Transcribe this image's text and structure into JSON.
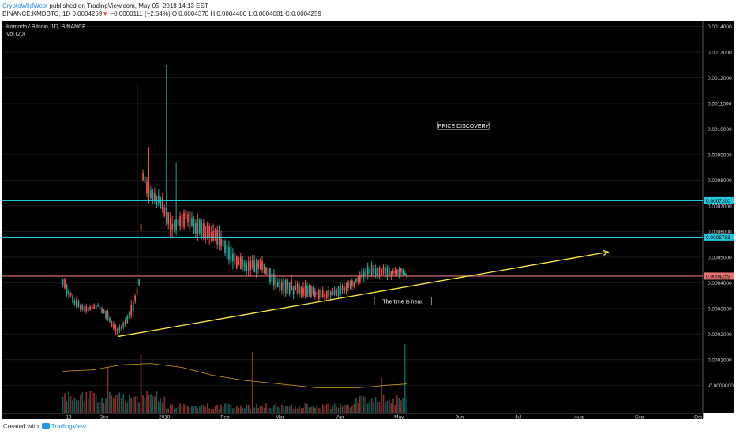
{
  "header": {
    "author": "CryptoWildWest",
    "published": " published on TradingView.com, May 05, 2018 14:13 EST",
    "symbol_line": "BINANCE:KMDBTC, 1D  0.0004259",
    "change_arrow": "▼",
    "change_text": " −0.0000111 (−2.54%)  O:0.0004370  H:0.0004480  L:0.0004081  C:0.0004259"
  },
  "footer": {
    "created": "Created with",
    "brand": "TradingView"
  },
  "chart_data": {
    "type": "candlestick",
    "title": "Komodo / Bitcoin, 1D, BINANCE",
    "volume_label": "Vol (20)",
    "y_ticks": [
      "0.0014000",
      "0.0013000",
      "0.0012000",
      "0.0011000",
      "0.0010000",
      "0.0009000",
      "0.0008000",
      "0.0007000",
      "0.0006000",
      "0.0005000",
      "0.0004000",
      "0.0003000",
      "0.0002000",
      "0.0001000",
      "-0.0000000"
    ],
    "ylim": [
      -0.00011,
      0.00142
    ],
    "x_ticks": [
      "13",
      "Dec",
      "2018",
      "Feb",
      "Mar",
      "Apr",
      "May",
      "Jun",
      "Jul",
      "Aug",
      "Sep",
      "Oct"
    ],
    "price_levels": [
      {
        "value": 0.00072,
        "label": "0.0007200",
        "color": "#26c6da"
      },
      {
        "value": 0.0005783,
        "label": "0.0005783",
        "color": "#26c6da"
      },
      {
        "value": 0.0004259,
        "label": "0.0004259",
        "color": "#e57373"
      }
    ],
    "trendline": {
      "start": [
        "2017-12-08",
        0.00019
      ],
      "end": [
        "2018-08-16",
        0.00052
      ],
      "color": "#ffeb3b"
    },
    "annotations": [
      {
        "text": "PRICE DISCOVERY",
        "x": "2018-06-03",
        "y": 0.00101
      },
      {
        "text": "The time is near.",
        "x": "2018-05-03",
        "y": 0.000325
      }
    ],
    "price_anchors": [
      [
        "2017-11-10",
        0.00038,
        0.00043
      ],
      [
        "2017-11-16",
        0.00031,
        0.00034
      ],
      [
        "2017-11-22",
        0.00028,
        0.00031
      ],
      [
        "2017-11-28",
        0.0003,
        0.00032
      ],
      [
        "2017-12-02",
        0.00026,
        0.0003
      ],
      [
        "2017-12-08",
        0.00019,
        0.00022
      ],
      [
        "2017-12-12",
        0.00023,
        0.00026
      ],
      [
        "2017-12-16",
        0.00028,
        0.00034
      ],
      [
        "2017-12-19",
        0.00039,
        0.00042
      ],
      [
        "2017-12-21",
        0.00078,
        0.00085
      ],
      [
        "2017-12-25",
        0.00071,
        0.00078
      ],
      [
        "2017-12-30",
        0.00068,
        0.00075
      ],
      [
        "2018-01-05",
        0.00058,
        0.00066
      ],
      [
        "2018-01-12",
        0.00062,
        0.0007
      ],
      [
        "2018-01-20",
        0.00056,
        0.00064
      ],
      [
        "2018-01-28",
        0.00055,
        0.00062
      ],
      [
        "2018-02-04",
        0.00047,
        0.00055
      ],
      [
        "2018-02-12",
        0.00043,
        0.00049
      ],
      [
        "2018-02-20",
        0.00044,
        0.0005
      ],
      [
        "2018-02-28",
        0.00036,
        0.00042
      ],
      [
        "2018-03-08",
        0.00035,
        0.00041
      ],
      [
        "2018-03-16",
        0.00034,
        0.00039
      ],
      [
        "2018-03-24",
        0.00033,
        0.00037
      ],
      [
        "2018-04-01",
        0.00035,
        0.00039
      ],
      [
        "2018-04-08",
        0.00038,
        0.00042
      ],
      [
        "2018-04-14",
        0.00042,
        0.00047
      ],
      [
        "2018-04-20",
        0.00043,
        0.00047
      ],
      [
        "2018-04-26",
        0.00042,
        0.00046
      ],
      [
        "2018-05-02",
        0.00043,
        0.00046
      ],
      [
        "2018-05-05",
        0.00042,
        0.00044
      ]
    ],
    "wick_spikes": [
      [
        "2017-12-18",
        0.00118
      ],
      [
        "2017-12-24",
        0.00093
      ],
      [
        "2018-01-02",
        0.00125
      ],
      [
        "2018-01-07",
        0.00087
      ]
    ],
    "volume_ma": [
      [
        "2017-11-10",
        5.5e-05
      ],
      [
        "2017-11-25",
        6e-05
      ],
      [
        "2017-12-10",
        8e-05
      ],
      [
        "2017-12-25",
        8.5e-05
      ],
      [
        "2018-01-10",
        7e-05
      ],
      [
        "2018-01-25",
        4e-05
      ],
      [
        "2018-02-10",
        2e-05
      ],
      [
        "2018-03-01",
        5e-06
      ],
      [
        "2018-03-20",
        -1e-05
      ],
      [
        "2018-04-10",
        -1e-05
      ],
      [
        "2018-04-25",
        0.0
      ],
      [
        "2018-05-05",
        5e-06
      ]
    ],
    "volume_spikes": [
      [
        "2017-12-03",
        0.00018
      ],
      [
        "2017-12-20",
        0.00023
      ],
      [
        "2018-02-15",
        0.00024
      ],
      [
        "2018-04-22",
        0.00014
      ],
      [
        "2018-05-04",
        0.00027
      ]
    ],
    "colors": {
      "up": "#26a69a",
      "down": "#ef5350",
      "background": "#000000",
      "grid": "#1a1a1a",
      "text": "#d1d4dc",
      "vol_ma": "#d4a017"
    }
  }
}
